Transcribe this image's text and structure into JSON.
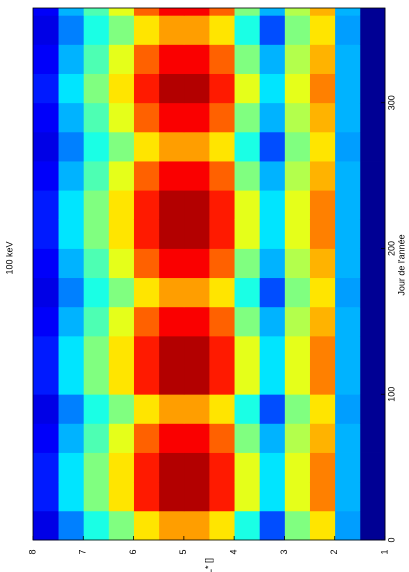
{
  "chart_data": {
    "type": "heatmap",
    "title": "100 keV",
    "x_label": "Jour de l'année",
    "y_label": "L* []",
    "colormap": "jet",
    "zlim": [
      0,
      1
    ],
    "xlim": [
      0,
      365
    ],
    "xticks": [
      0,
      100,
      200,
      300
    ],
    "ylim": [
      1,
      8
    ],
    "yticks": [
      1,
      2,
      3,
      4,
      5,
      6,
      7,
      8
    ],
    "x_edges": [
      0,
      20,
      40,
      60,
      80,
      100,
      120,
      140,
      160,
      180,
      200,
      220,
      240,
      260,
      280,
      300,
      320,
      340,
      360,
      365
    ],
    "y_edges": [
      1,
      1.5,
      2,
      2.5,
      3,
      3.5,
      4,
      4.5,
      5,
      5.5,
      6,
      6.5,
      7,
      7.5,
      8
    ],
    "z": [
      [
        0.02,
        0.28,
        0.65,
        0.5,
        0.2,
        0.4,
        0.65,
        0.72,
        0.72,
        0.65,
        0.5,
        0.4,
        0.25,
        0.1
      ],
      [
        0.02,
        0.3,
        0.75,
        0.6,
        0.35,
        0.6,
        0.85,
        0.95,
        0.95,
        0.85,
        0.65,
        0.5,
        0.35,
        0.15
      ],
      [
        0.02,
        0.3,
        0.75,
        0.6,
        0.35,
        0.6,
        0.85,
        0.95,
        0.95,
        0.85,
        0.65,
        0.5,
        0.35,
        0.15
      ],
      [
        0.02,
        0.3,
        0.7,
        0.55,
        0.3,
        0.5,
        0.78,
        0.88,
        0.88,
        0.78,
        0.6,
        0.45,
        0.3,
        0.12
      ],
      [
        0.02,
        0.28,
        0.65,
        0.5,
        0.2,
        0.4,
        0.65,
        0.72,
        0.72,
        0.65,
        0.5,
        0.4,
        0.25,
        0.1
      ],
      [
        0.02,
        0.3,
        0.75,
        0.6,
        0.35,
        0.6,
        0.85,
        0.95,
        0.95,
        0.85,
        0.65,
        0.5,
        0.35,
        0.15
      ],
      [
        0.02,
        0.3,
        0.75,
        0.6,
        0.35,
        0.6,
        0.85,
        0.95,
        0.95,
        0.85,
        0.65,
        0.5,
        0.35,
        0.15
      ],
      [
        0.02,
        0.3,
        0.7,
        0.55,
        0.3,
        0.5,
        0.78,
        0.88,
        0.88,
        0.78,
        0.6,
        0.45,
        0.3,
        0.12
      ],
      [
        0.02,
        0.28,
        0.65,
        0.5,
        0.2,
        0.4,
        0.65,
        0.72,
        0.72,
        0.65,
        0.5,
        0.4,
        0.25,
        0.1
      ],
      [
        0.02,
        0.3,
        0.7,
        0.55,
        0.3,
        0.5,
        0.78,
        0.88,
        0.88,
        0.78,
        0.6,
        0.45,
        0.3,
        0.12
      ],
      [
        0.02,
        0.3,
        0.75,
        0.6,
        0.35,
        0.6,
        0.85,
        0.95,
        0.95,
        0.85,
        0.65,
        0.5,
        0.35,
        0.15
      ],
      [
        0.02,
        0.3,
        0.75,
        0.6,
        0.35,
        0.6,
        0.85,
        0.95,
        0.95,
        0.85,
        0.65,
        0.5,
        0.35,
        0.15
      ],
      [
        0.02,
        0.3,
        0.7,
        0.55,
        0.3,
        0.5,
        0.78,
        0.88,
        0.88,
        0.78,
        0.6,
        0.45,
        0.3,
        0.12
      ],
      [
        0.02,
        0.28,
        0.65,
        0.5,
        0.2,
        0.4,
        0.65,
        0.72,
        0.72,
        0.65,
        0.5,
        0.4,
        0.25,
        0.1
      ],
      [
        0.02,
        0.3,
        0.7,
        0.55,
        0.3,
        0.5,
        0.78,
        0.88,
        0.88,
        0.78,
        0.6,
        0.45,
        0.3,
        0.12
      ],
      [
        0.02,
        0.3,
        0.75,
        0.6,
        0.35,
        0.6,
        0.85,
        0.95,
        0.95,
        0.85,
        0.65,
        0.5,
        0.35,
        0.15
      ],
      [
        0.02,
        0.3,
        0.7,
        0.55,
        0.3,
        0.5,
        0.78,
        0.88,
        0.88,
        0.78,
        0.6,
        0.45,
        0.3,
        0.12
      ],
      [
        0.02,
        0.28,
        0.65,
        0.5,
        0.2,
        0.4,
        0.65,
        0.72,
        0.72,
        0.65,
        0.5,
        0.4,
        0.25,
        0.1
      ],
      [
        0.02,
        0.3,
        0.7,
        0.55,
        0.3,
        0.5,
        0.78,
        0.88,
        0.88,
        0.78,
        0.6,
        0.45,
        0.3,
        0.12
      ]
    ]
  }
}
